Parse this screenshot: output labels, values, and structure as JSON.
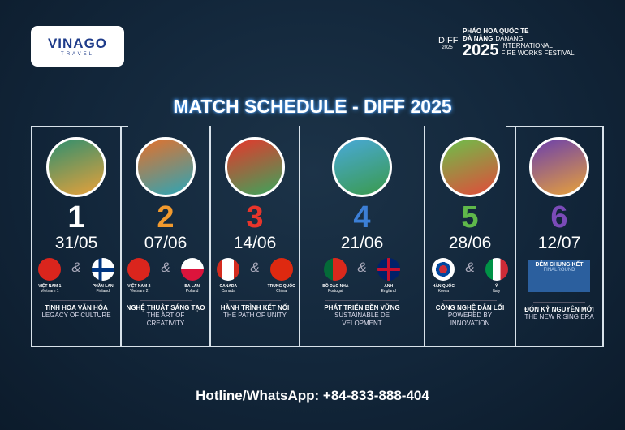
{
  "logo": {
    "text": "VINAGO",
    "sub": "TRAVEL"
  },
  "festival": {
    "mark": "DIFF",
    "mark_year": "2025",
    "line1": "PHÁO HOA QUỐC TẾ",
    "line2a": "ĐÀ NẴNG",
    "line2b": "DANANG",
    "year": "2025",
    "line3": "INTERNATIONAL",
    "line4": "FIRE WORKS FESTIVAL"
  },
  "title": "MATCH SCHEDULE - DIFF 2025",
  "amp": "&",
  "matches": [
    {
      "num": "1",
      "color": "#ffffff",
      "date": "31/05",
      "art": [
        "#2f8f6f",
        "#e8a13a"
      ],
      "teams": [
        {
          "vn": "VIỆT NAM 1",
          "en": "Vietnam 1",
          "flag": "vn"
        },
        {
          "vn": "PHẦN LAN",
          "en": "Finland",
          "flag": "fi"
        }
      ],
      "vt": "TINH HOA  VĂN HÓA",
      "et": "LEGACY OF CULTURE"
    },
    {
      "num": "2",
      "color": "#f29a2e",
      "date": "07/06",
      "art": [
        "#e5702a",
        "#2aa6b8"
      ],
      "teams": [
        {
          "vn": "VIỆT NAM 2",
          "en": "Vietnam 2",
          "flag": "vn"
        },
        {
          "vn": "BA LAN",
          "en": "Poland",
          "flag": "pl"
        }
      ],
      "vt": "NGHỆ THUẬT SÁNG TẠO",
      "et": "THE ART OF CREATIVITY"
    },
    {
      "num": "3",
      "color": "#e8352b",
      "date": "14/06",
      "art": [
        "#e8352b",
        "#3aa65c"
      ],
      "teams": [
        {
          "vn": "CANADA",
          "en": "Canada",
          "flag": "ca"
        },
        {
          "vn": "TRUNG QUỐC",
          "en": "China",
          "flag": "cn"
        }
      ],
      "vt": "HÀNH TRÌNH KẾT NỐI",
      "et": "THE PATH OF UNITY"
    },
    {
      "num": "4",
      "color": "#3c7fd6",
      "date": "21/06",
      "art": [
        "#49a9d9",
        "#3a9a4c"
      ],
      "teams": [
        {
          "vn": "BỒ ĐÀO NHA",
          "en": "Portugal",
          "flag": "pt"
        },
        {
          "vn": "ANH",
          "en": "England",
          "flag": "gb"
        }
      ],
      "vt": "PHÁT TRIỂN BỀN VỮNG",
      "et": "SUSTAINABLE DE VELOPMENT"
    },
    {
      "num": "5",
      "color": "#5fb84a",
      "date": "28/06",
      "art": [
        "#6cc04a",
        "#e24a3a"
      ],
      "teams": [
        {
          "vn": "HÀN QUỐC",
          "en": "Korea",
          "flag": "kr"
        },
        {
          "vn": "Ý",
          "en": "Italy",
          "flag": "it"
        }
      ],
      "vt": "CÔNG NGHỆ DẪN LỐI",
      "et": "POWERED BY INNOVATION"
    },
    {
      "num": "6",
      "color": "#7b4bb8",
      "date": "12/07",
      "art": [
        "#6a3fae",
        "#e8a13a"
      ],
      "final": {
        "vn": "ĐÊM CHUNG KẾT",
        "en": "FINALROUND"
      },
      "vt": "ĐÓN KỶ NGUYÊN MỚI",
      "et": "THE NEW RISING ERA"
    }
  ],
  "hotline": "Hotline/WhatsApp:  +84-833-888-404"
}
